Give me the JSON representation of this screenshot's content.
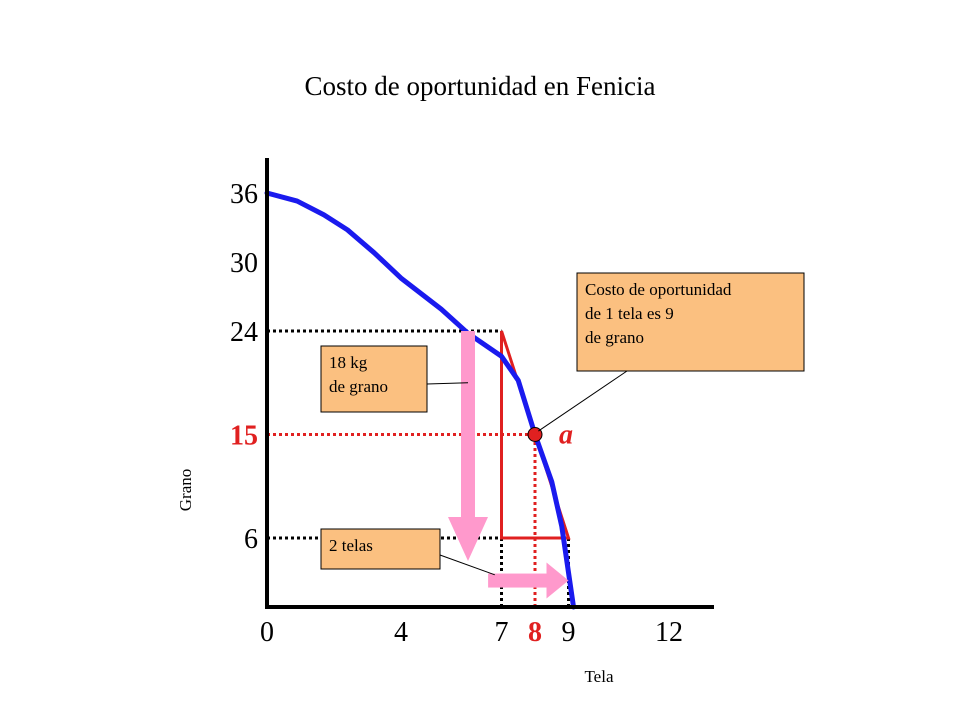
{
  "chart_data": {
    "type": "line",
    "title": "Costo de oportunidad en Fenicia",
    "xlabel": "Tela",
    "ylabel": "Grano",
    "xlim": [
      0,
      13.8
    ],
    "ylim": [
      0,
      40.8
    ],
    "x_ticks": [
      {
        "value": 0,
        "label": "0"
      },
      {
        "value": 4,
        "label": "4"
      },
      {
        "value": 7,
        "label": "7"
      },
      {
        "value": 8,
        "label": "8",
        "highlight": true
      },
      {
        "value": 9,
        "label": "9"
      },
      {
        "value": 12,
        "label": "12"
      }
    ],
    "y_ticks": [
      {
        "value": 6,
        "label": "6"
      },
      {
        "value": 15,
        "label": "15",
        "highlight": true
      },
      {
        "value": 24,
        "label": "24"
      },
      {
        "value": 30,
        "label": "30"
      },
      {
        "value": 36,
        "label": "36"
      }
    ],
    "series": [
      {
        "x": [
          0,
          0.9,
          1.7,
          2.4,
          3.2,
          4.0,
          5.2,
          6.0,
          7.0,
          7.5,
          8.0,
          8.5,
          8.8,
          9.0,
          9.15
        ],
        "y": [
          36,
          35.3,
          34.1,
          32.8,
          30.8,
          28.6,
          25.9,
          23.8,
          21.8,
          19.7,
          15,
          10.9,
          7.0,
          3.0,
          0
        ],
        "color": "#1a1aee"
      }
    ],
    "tangent_triangle": {
      "points": [
        [
          7,
          24
        ],
        [
          9,
          6
        ],
        [
          7,
          6
        ]
      ],
      "color": "#e02020"
    },
    "point": {
      "x": 8,
      "y": 15,
      "label": "a",
      "color": "#e02020"
    },
    "guides": [
      {
        "from": [
          0,
          24
        ],
        "to": [
          7,
          24
        ],
        "color": "#000000"
      },
      {
        "from": [
          0,
          6
        ],
        "to": [
          9,
          6
        ],
        "color": "#000000"
      },
      {
        "from": [
          7,
          0
        ],
        "to": [
          7,
          6
        ],
        "color": "#000000"
      },
      {
        "from": [
          9,
          0
        ],
        "to": [
          9,
          6
        ],
        "color": "#000000"
      },
      {
        "from": [
          0,
          15
        ],
        "to": [
          8,
          15
        ],
        "color": "#e02020"
      },
      {
        "from": [
          8,
          0
        ],
        "to": [
          8,
          15
        ],
        "color": "#e02020"
      }
    ],
    "arrows": [
      {
        "from": [
          6.0,
          24
        ],
        "to": [
          6.0,
          4
        ],
        "color": "#ff99cc",
        "direction": "down"
      },
      {
        "from": [
          6.6,
          2.3
        ],
        "to": [
          9.0,
          2.3
        ],
        "color": "#ff99cc",
        "direction": "right"
      }
    ],
    "annotations": [
      {
        "id": "callout-18",
        "lines": [
          "18 kg",
          "de grano"
        ],
        "target": [
          6.0,
          19.5
        ],
        "fill": "#fbc080"
      },
      {
        "id": "callout-telas",
        "lines": [
          "2 telas"
        ],
        "target": [
          6.8,
          2.8
        ],
        "fill": "#fbc080"
      },
      {
        "id": "callout-costo",
        "lines": [
          "Costo de oportunidad",
          "de 1 tela es 9",
          "de grano"
        ],
        "target": [
          8.1,
          15.3
        ],
        "fill": "#fbc080"
      }
    ],
    "colors": {
      "highlight": "#e02020",
      "axis": "#000000"
    }
  }
}
